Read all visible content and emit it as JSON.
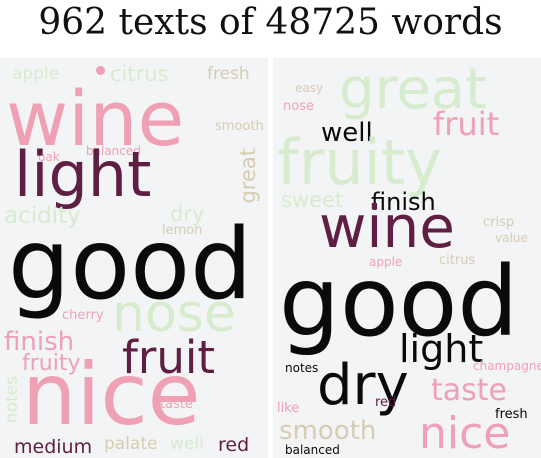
{
  "title": "962 texts of 48725 words",
  "colors": {
    "black": "#0a0a0a",
    "maroon": "#5e1f43",
    "pink": "#f0a0b4",
    "green": "#d7ebcf",
    "tan": "#d6ccb2",
    "background": "#f3f4f6"
  },
  "left_cloud": {
    "words": [
      "good",
      "nice",
      "wine",
      "light",
      "fruit",
      "nose",
      "finish",
      "fruity",
      "apple",
      "citrus",
      "fresh",
      "smooth",
      "oak",
      "balanced",
      "great",
      "acidity",
      "dry",
      "lemon",
      "cherry",
      "notes",
      "taste",
      "medium",
      "palate",
      "well",
      "red"
    ]
  },
  "right_cloud": {
    "words": [
      "good",
      "wine",
      "fruity",
      "great",
      "fruit",
      "well",
      "finish",
      "sweet",
      "dry",
      "light",
      "taste",
      "nice",
      "smooth",
      "easy",
      "nose",
      "crisp",
      "value",
      "apple",
      "citrus",
      "champagne",
      "notes",
      "like",
      "red",
      "fresh",
      "balanced"
    ]
  }
}
